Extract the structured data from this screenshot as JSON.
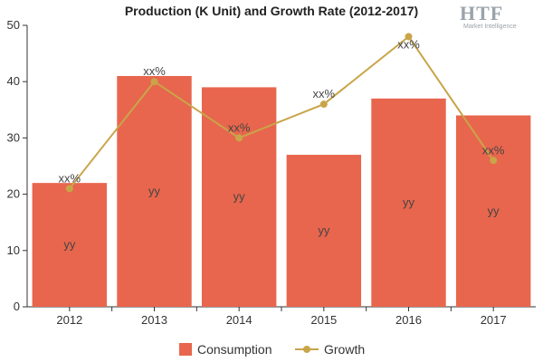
{
  "colors": {
    "bar": "#e8664d",
    "line": "#c9a54a",
    "axis": "#333333",
    "grid": "#e6e6e6"
  },
  "logo": {
    "main": "HTF",
    "sub": "Market Intelligence"
  },
  "chart_data": {
    "type": "bar",
    "title": "Production (K Unit) and Growth Rate (2012-2017)",
    "categories": [
      "2012",
      "2013",
      "2014",
      "2015",
      "2016",
      "2017"
    ],
    "ylim": [
      0,
      50
    ],
    "yticks": [
      "0",
      "10",
      "20",
      "30",
      "40",
      "50"
    ],
    "grid": false,
    "legend_position": "bottom",
    "series": [
      {
        "name": "Consumption",
        "type": "bar",
        "values": [
          22,
          41,
          39,
          27,
          37,
          34
        ],
        "labels": [
          "yy",
          "yy",
          "yy",
          "yy",
          "yy",
          "yy"
        ]
      },
      {
        "name": "Growth",
        "type": "line",
        "values": [
          21,
          40,
          30,
          36,
          48,
          26
        ],
        "labels": [
          "xx%",
          "xx%",
          "xx%",
          "xx%",
          "xx%",
          "xx%"
        ]
      }
    ]
  }
}
